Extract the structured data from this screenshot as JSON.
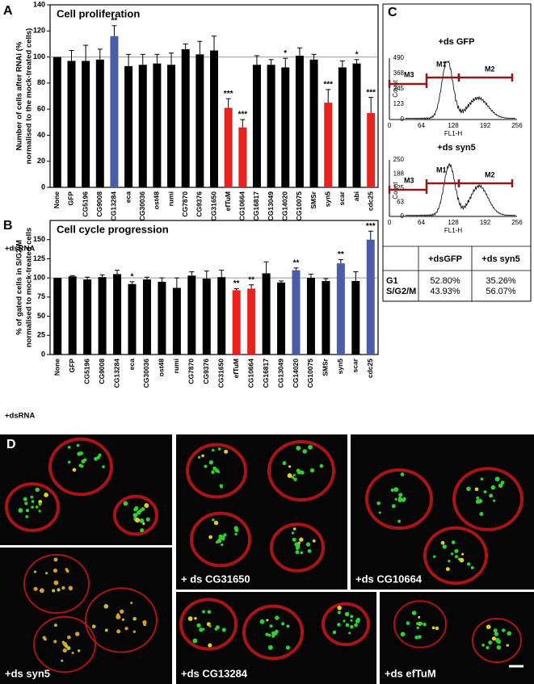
{
  "chart_data": [
    {
      "type": "bar",
      "panel": "A",
      "title": "Cell proliferation",
      "ylabel": [
        "Number of cells after RNAi (%",
        "normalised to the mock-treated cells)"
      ],
      "xlabel": "+dsRNA",
      "categories": [
        "None",
        "GFP",
        "CG5196",
        "CG9008",
        "CG13284",
        "eca",
        "CG30036",
        "ost48",
        "rumi",
        "CG7870",
        "CG9376",
        "CG31650",
        "efTuM",
        "CG10664",
        "CG16817",
        "CG13049",
        "CG14020",
        "CG10075",
        "SMSr",
        "syn5",
        "scar",
        "abi",
        "cdc25"
      ],
      "values": [
        100,
        97,
        97,
        98,
        116,
        93,
        94,
        95,
        94,
        106,
        102,
        105,
        61,
        46,
        94,
        94,
        92,
        101,
        98,
        65,
        92,
        95,
        57
      ],
      "errors": [
        0,
        8,
        12,
        8,
        8,
        9,
        8,
        7,
        9,
        4,
        10,
        11,
        7,
        6,
        7,
        4,
        7,
        6,
        4,
        10,
        5,
        3,
        12
      ],
      "colors": [
        "#000000",
        "#000000",
        "#000000",
        "#000000",
        "#4a5da8",
        "#000000",
        "#000000",
        "#000000",
        "#000000",
        "#000000",
        "#000000",
        "#000000",
        "#e8231f",
        "#e8231f",
        "#000000",
        "#000000",
        "#000000",
        "#000000",
        "#000000",
        "#e8231f",
        "#000000",
        "#000000",
        "#e8231f"
      ],
      "significance": [
        null,
        null,
        null,
        null,
        "**",
        null,
        null,
        null,
        null,
        null,
        null,
        null,
        "***",
        "***",
        null,
        null,
        "*",
        null,
        null,
        "***",
        null,
        "*",
        "***"
      ],
      "reference_line": 100,
      "ylim": [
        0,
        140
      ],
      "yticks": [
        0,
        20,
        40,
        60,
        80,
        100,
        120,
        140
      ]
    },
    {
      "type": "bar",
      "panel": "B",
      "title": "Cell cycle progression",
      "ylabel": [
        "% of gated cells in S/G2/M",
        "normalised to mock-treated cells"
      ],
      "xlabel": "+dsRNA",
      "categories": [
        "None",
        "GFP",
        "CG5196",
        "CG9008",
        "CG13284",
        "eca",
        "CG30036",
        "ost48",
        "rumi",
        "CG7870",
        "CG9376",
        "CG31650",
        "efTuM",
        "CG10664",
        "CG16817",
        "CG13049",
        "CG14020",
        "CG10075",
        "SMSr",
        "syn5",
        "scar",
        "cdc25"
      ],
      "values": [
        100,
        102,
        98,
        101,
        105,
        92,
        98,
        95,
        87,
        103,
        99,
        101,
        84,
        86,
        106,
        94,
        110,
        100,
        96,
        119,
        96,
        150
      ],
      "errors": [
        0,
        1,
        3,
        3,
        5,
        3,
        3,
        5,
        13,
        5,
        10,
        9,
        2,
        5,
        15,
        2,
        3,
        5,
        3,
        5,
        12,
        11
      ],
      "colors": [
        "#000000",
        "#000000",
        "#000000",
        "#000000",
        "#000000",
        "#000000",
        "#000000",
        "#000000",
        "#000000",
        "#000000",
        "#000000",
        "#000000",
        "#e8231f",
        "#e8231f",
        "#000000",
        "#000000",
        "#4a5da8",
        "#000000",
        "#000000",
        "#4a5da8",
        "#000000",
        "#4a5da8"
      ],
      "significance": [
        null,
        null,
        null,
        null,
        null,
        "*",
        null,
        null,
        null,
        null,
        null,
        null,
        "**",
        "**",
        null,
        null,
        "**",
        null,
        null,
        "**",
        null,
        "***"
      ],
      "reference_line": 100,
      "ylim": [
        0,
        175
      ],
      "yticks": [
        0,
        25,
        50,
        75,
        100,
        125,
        150
      ]
    }
  ],
  "panel_c": {
    "panel": "C",
    "histograms": [
      {
        "title": "+ds GFP",
        "ylabel": "Count",
        "xlabel": "FL1-H",
        "yticks": [
          490,
          368,
          245,
          123,
          0
        ],
        "xticks": [
          0,
          64,
          128,
          192,
          256
        ],
        "markers": [
          "M3",
          "M1",
          "M2"
        ]
      },
      {
        "title": "+ds syn5",
        "ylabel": "Count",
        "xlabel": "FL1-H",
        "yticks": [
          250,
          188,
          125,
          63,
          0
        ],
        "xticks": [
          0,
          64,
          128,
          192,
          256
        ],
        "markers": [
          "M3",
          "M1",
          "M2"
        ]
      }
    ],
    "table": {
      "header": [
        "+dsGFP",
        "+ds syn5"
      ],
      "rows": [
        [
          "G1",
          "52.80%",
          "35.26%"
        ],
        [
          "S/G2/M",
          "43.93%",
          "56.07%"
        ]
      ]
    }
  },
  "panel_d": {
    "panel": "D",
    "images": [
      "+ ds CG31650",
      "+ds CG10664",
      "+ds syn5",
      "+ds CG13284",
      "+ds efTuM"
    ]
  }
}
